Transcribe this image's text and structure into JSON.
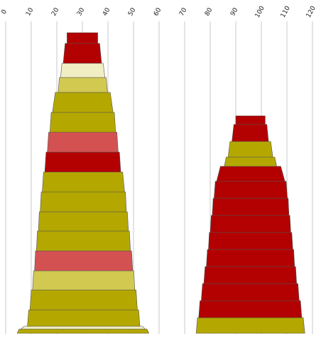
{
  "chart_data": {
    "type": "stacked-bar-profile",
    "x_axis": {
      "position": "top",
      "ticks": [
        0,
        10,
        20,
        30,
        40,
        50,
        60,
        70,
        80,
        90,
        100,
        110,
        120
      ],
      "range": [
        0,
        120
      ],
      "grid": true
    },
    "colors": {
      "dark_red": "#b30000",
      "red": "#d45151",
      "olive": "#b4a800",
      "light_olive": "#d2c951",
      "cream": "#f2eec3"
    },
    "columns": [
      {
        "segments": [
          {
            "left": 4.5,
            "right": 56.0,
            "color": "olive"
          },
          {
            "left": 6.0,
            "right": 54.5,
            "color": "cream"
          },
          {
            "left": 8.5,
            "right": 52.5,
            "color": "olive"
          },
          {
            "left": 9.5,
            "right": 51.5,
            "color": "olive"
          },
          {
            "left": 10.5,
            "right": 50.5,
            "color": "light_olive"
          },
          {
            "left": 11.3,
            "right": 49.7,
            "color": "red"
          },
          {
            "left": 12.0,
            "right": 48.8,
            "color": "olive"
          },
          {
            "left": 12.8,
            "right": 48.0,
            "color": "olive"
          },
          {
            "left": 13.5,
            "right": 47.2,
            "color": "olive"
          },
          {
            "left": 14.3,
            "right": 46.5,
            "color": "olive"
          },
          {
            "left": 15.3,
            "right": 45.0,
            "color": "dark_red"
          },
          {
            "left": 16.3,
            "right": 44.0,
            "color": "red"
          },
          {
            "left": 17.3,
            "right": 43.0,
            "color": "olive"
          },
          {
            "left": 18.3,
            "right": 42.0,
            "color": "olive"
          },
          {
            "left": 20.5,
            "right": 39.8,
            "color": "light_olive"
          },
          {
            "left": 21.5,
            "right": 38.8,
            "color": "cream"
          },
          {
            "left": 22.5,
            "right": 37.5,
            "color": "dark_red"
          },
          {
            "left": 24.0,
            "right": 36.0,
            "color": "dark_red"
          }
        ]
      },
      {
        "segments": [
          {
            "left": 74.5,
            "right": 117.0,
            "color": "olive"
          },
          {
            "left": 75.5,
            "right": 115.8,
            "color": "dark_red"
          },
          {
            "left": 76.5,
            "right": 114.8,
            "color": "dark_red"
          },
          {
            "left": 77.5,
            "right": 113.8,
            "color": "dark_red"
          },
          {
            "left": 78.5,
            "right": 113.0,
            "color": "dark_red"
          },
          {
            "left": 79.3,
            "right": 112.3,
            "color": "dark_red"
          },
          {
            "left": 80.0,
            "right": 111.5,
            "color": "dark_red"
          },
          {
            "left": 80.8,
            "right": 110.8,
            "color": "dark_red"
          },
          {
            "left": 81.5,
            "right": 110.2,
            "color": "dark_red"
          },
          {
            "left": 82.5,
            "right": 109.2,
            "color": "dark_red"
          },
          {
            "left": 85.5,
            "right": 106.0,
            "color": "olive"
          },
          {
            "left": 87.0,
            "right": 104.5,
            "color": "olive"
          },
          {
            "left": 88.5,
            "right": 102.8,
            "color": "dark_red"
          },
          {
            "left": 90.0,
            "right": 101.5,
            "color": "dark_red"
          }
        ]
      }
    ]
  }
}
